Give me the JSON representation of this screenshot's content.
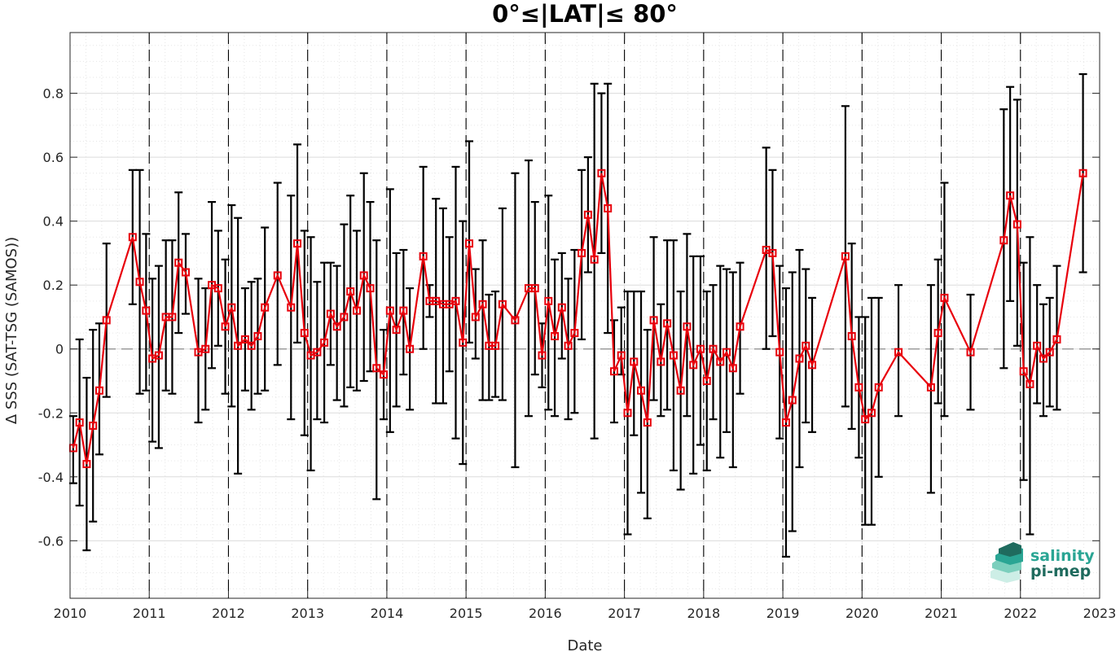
{
  "chart_data": {
    "type": "line",
    "title": "0°≤|LAT|≤ 80°",
    "xlabel": "Date",
    "ylabel": "Δ SSS (SAT-TSG (SAMOS))",
    "xlim": [
      2010,
      2023
    ],
    "ylim": [
      -0.78,
      0.99
    ],
    "x_ticks": [
      2010,
      2011,
      2012,
      2013,
      2014,
      2015,
      2016,
      2017,
      2018,
      2019,
      2020,
      2021,
      2022,
      2023
    ],
    "x_tick_labels": [
      "2010",
      "2011",
      "2012",
      "2013",
      "2014",
      "2015",
      "2016",
      "2017",
      "2018",
      "2019",
      "2020",
      "2021",
      "2022",
      "2023"
    ],
    "y_ticks": [
      -0.6,
      -0.4,
      -0.2,
      0,
      0.2,
      0.4,
      0.6,
      0.8
    ],
    "y_tick_labels": [
      "-0.6",
      "-0.4",
      "-0.2",
      "0",
      "0.2",
      "0.4",
      "0.6",
      "0.8"
    ],
    "grid": true,
    "minor_grid": true,
    "reference_line_y": 0,
    "year_markers": [
      2011,
      2012,
      2013,
      2014,
      2015,
      2016,
      2017,
      2018,
      2019,
      2020,
      2021,
      2022
    ],
    "colors": {
      "series": "#e8000b",
      "error_bars": "#000000",
      "grid": "#dcdcdc",
      "zero_line": "#8c8c8c",
      "logo_teal": "#2aa594",
      "logo_dark": "#1f6b5e"
    },
    "logo": {
      "line1": "salinity",
      "line2": "pi-mep"
    },
    "series": [
      {
        "x": [
          2010.04,
          2010.12,
          2010.21,
          2010.29,
          2010.37,
          2010.46,
          2010.79,
          2010.88,
          2010.96,
          2011.04,
          2011.12,
          2011.21,
          2011.29,
          2011.37,
          2011.46,
          2011.62,
          2011.71,
          2011.79,
          2011.87,
          2011.96,
          2012.04,
          2012.12,
          2012.21,
          2012.29,
          2012.37,
          2012.46,
          2012.62,
          2012.79,
          2012.87,
          2012.96,
          2013.04,
          2013.12,
          2013.21,
          2013.29,
          2013.37,
          2013.46,
          2013.54,
          2013.62,
          2013.71,
          2013.79,
          2013.87,
          2013.96,
          2014.04,
          2014.12,
          2014.21,
          2014.29,
          2014.46,
          2014.54,
          2014.62,
          2014.71,
          2014.79,
          2014.87,
          2014.96,
          2015.04,
          2015.12,
          2015.21,
          2015.29,
          2015.37,
          2015.46,
          2015.62,
          2015.79,
          2015.87,
          2015.96,
          2016.04,
          2016.12,
          2016.21,
          2016.29,
          2016.37,
          2016.46,
          2016.54,
          2016.62,
          2016.71,
          2016.79,
          2016.87,
          2016.96,
          2017.04,
          2017.12,
          2017.21,
          2017.29,
          2017.37,
          2017.46,
          2017.54,
          2017.62,
          2017.71,
          2017.79,
          2017.87,
          2017.96,
          2018.04,
          2018.12,
          2018.21,
          2018.29,
          2018.37,
          2018.46,
          2018.79,
          2018.87,
          2018.96,
          2019.04,
          2019.12,
          2019.21,
          2019.29,
          2019.37,
          2019.79,
          2019.87,
          2019.96,
          2020.04,
          2020.12,
          2020.21,
          2020.46,
          2020.87,
          2020.96,
          2021.04,
          2021.37,
          2021.79,
          2021.87,
          2021.96,
          2022.04,
          2022.12,
          2022.21,
          2022.29,
          2022.37,
          2022.46,
          2022.79
        ],
        "y": [
          -0.31,
          -0.23,
          -0.36,
          -0.24,
          -0.13,
          0.09,
          0.35,
          0.21,
          0.12,
          -0.03,
          -0.02,
          0.1,
          0.1,
          0.27,
          0.24,
          -0.01,
          0.0,
          0.2,
          0.19,
          0.07,
          0.13,
          0.01,
          0.03,
          0.01,
          0.04,
          0.13,
          0.23,
          0.13,
          0.33,
          0.05,
          -0.02,
          -0.01,
          0.02,
          0.11,
          0.07,
          0.1,
          0.18,
          0.12,
          0.23,
          0.19,
          -0.06,
          -0.08,
          0.12,
          0.06,
          0.12,
          0.0,
          0.29,
          0.15,
          0.15,
          0.14,
          0.14,
          0.15,
          0.02,
          0.33,
          0.1,
          0.14,
          0.01,
          0.01,
          0.14,
          0.09,
          0.19,
          0.19,
          -0.02,
          0.15,
          0.04,
          0.13,
          0.01,
          0.05,
          0.3,
          0.42,
          0.28,
          0.55,
          0.44,
          -0.07,
          -0.02,
          -0.2,
          -0.04,
          -0.13,
          -0.23,
          0.09,
          -0.04,
          0.08,
          -0.02,
          -0.13,
          0.07,
          -0.05,
          0.0,
          -0.1,
          0.0,
          -0.04,
          -0.01,
          -0.06,
          0.07,
          0.31,
          0.3,
          -0.01,
          -0.23,
          -0.16,
          -0.03,
          0.01,
          -0.05,
          0.29,
          0.04,
          -0.12,
          -0.22,
          -0.2,
          -0.12,
          -0.01,
          -0.12,
          0.05,
          0.16,
          -0.01,
          0.34,
          0.48,
          0.39,
          -0.07,
          -0.11,
          0.01,
          -0.03,
          -0.01,
          0.03,
          0.55
        ],
        "err_low": [
          -0.42,
          -0.49,
          -0.63,
          -0.54,
          -0.33,
          -0.15,
          0.14,
          -0.14,
          -0.13,
          -0.29,
          -0.31,
          -0.13,
          -0.14,
          0.05,
          0.11,
          -0.23,
          -0.19,
          -0.06,
          0.01,
          -0.14,
          -0.18,
          -0.39,
          -0.13,
          -0.19,
          -0.14,
          -0.13,
          -0.05,
          -0.22,
          0.02,
          -0.27,
          -0.38,
          -0.22,
          -0.23,
          -0.05,
          -0.16,
          -0.18,
          -0.12,
          -0.13,
          -0.1,
          -0.07,
          -0.47,
          -0.22,
          -0.26,
          -0.18,
          -0.08,
          -0.19,
          0.0,
          0.1,
          -0.17,
          -0.17,
          -0.07,
          -0.28,
          -0.36,
          0.02,
          -0.03,
          -0.16,
          -0.16,
          -0.15,
          -0.16,
          -0.37,
          -0.21,
          -0.08,
          -0.12,
          -0.19,
          -0.21,
          -0.03,
          -0.22,
          -0.2,
          0.03,
          0.24,
          -0.28,
          0.3,
          0.05,
          -0.23,
          -0.08,
          -0.58,
          -0.27,
          -0.45,
          -0.53,
          -0.16,
          -0.21,
          -0.19,
          -0.38,
          -0.44,
          -0.21,
          -0.39,
          -0.3,
          -0.38,
          -0.22,
          -0.34,
          -0.26,
          -0.37,
          -0.14,
          0.0,
          0.04,
          -0.28,
          -0.65,
          -0.57,
          -0.37,
          -0.23,
          -0.26,
          -0.18,
          -0.25,
          -0.34,
          -0.55,
          -0.55,
          -0.4,
          -0.21,
          -0.45,
          -0.17,
          -0.21,
          -0.19,
          -0.06,
          0.15,
          0.01,
          -0.41,
          -0.58,
          -0.17,
          -0.21,
          -0.18,
          -0.19,
          0.24
        ],
        "err_high": [
          -0.21,
          0.03,
          -0.09,
          0.06,
          0.08,
          0.33,
          0.56,
          0.56,
          0.36,
          0.22,
          0.26,
          0.34,
          0.34,
          0.49,
          0.36,
          0.22,
          0.19,
          0.46,
          0.37,
          0.28,
          0.45,
          0.41,
          0.19,
          0.21,
          0.22,
          0.38,
          0.52,
          0.48,
          0.64,
          0.37,
          0.35,
          0.21,
          0.27,
          0.27,
          0.26,
          0.39,
          0.48,
          0.37,
          0.55,
          0.46,
          0.34,
          0.06,
          0.5,
          0.3,
          0.31,
          0.19,
          0.57,
          0.2,
          0.47,
          0.44,
          0.35,
          0.57,
          0.4,
          0.65,
          0.25,
          0.34,
          0.17,
          0.18,
          0.44,
          0.55,
          0.59,
          0.46,
          0.08,
          0.48,
          0.28,
          0.3,
          0.22,
          0.31,
          0.56,
          0.6,
          0.83,
          0.8,
          0.83,
          0.09,
          0.13,
          0.18,
          0.18,
          0.18,
          0.06,
          0.35,
          0.14,
          0.34,
          0.34,
          0.18,
          0.36,
          0.29,
          0.29,
          0.18,
          0.2,
          0.26,
          0.25,
          0.24,
          0.27,
          0.63,
          0.56,
          0.26,
          0.19,
          0.24,
          0.31,
          0.25,
          0.16,
          0.76,
          0.33,
          0.1,
          0.1,
          0.16,
          0.16,
          0.2,
          0.2,
          0.28,
          0.52,
          0.17,
          0.75,
          0.82,
          0.78,
          0.27,
          0.35,
          0.2,
          0.14,
          0.16,
          0.26,
          0.86
        ]
      }
    ]
  }
}
